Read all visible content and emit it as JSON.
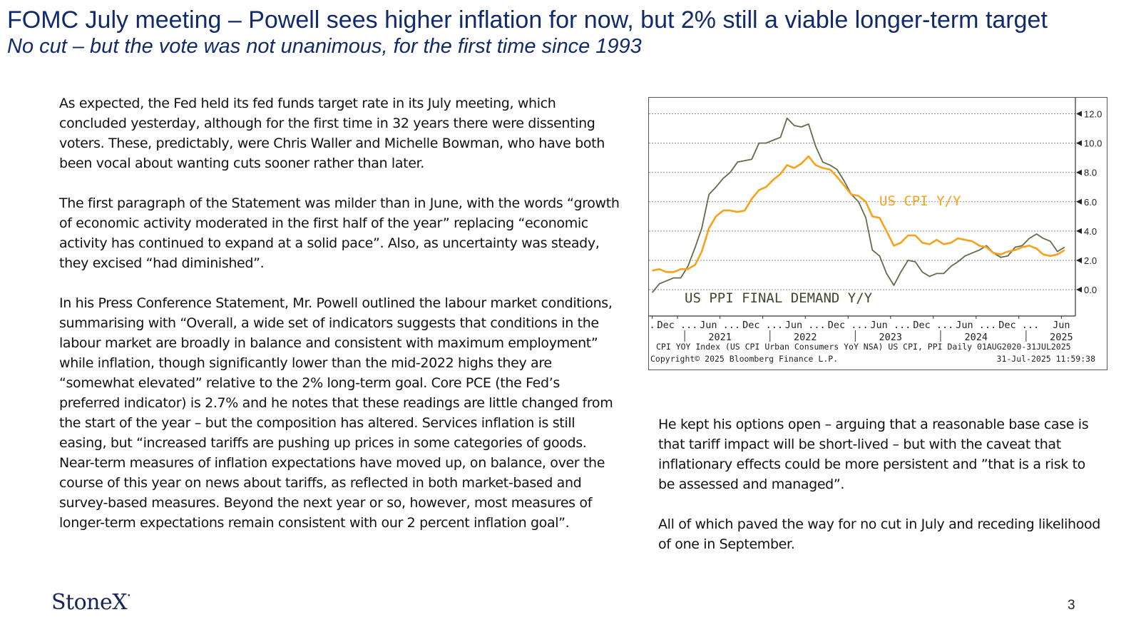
{
  "header": {
    "title": "FOMC July meeting – Powell sees higher inflation for now, but 2% still a viable longer-term target",
    "subtitle": "No cut – but the vote was not unanimous, for the first time since 1993"
  },
  "left_column": {
    "paragraphs": [
      "As expected, the Fed held its fed funds target rate in its July meeting, which concluded yesterday, although for the first time in 32 years there were dissenting voters.  These, predictably, were Chris Waller and Michelle Bowman, who have both been vocal about wanting cuts sooner rather than later.",
      "The first paragraph of the Statement was milder than in June, with the words “growth of economic activity moderated in the first half of the year” replacing “economic activity has continued to expand at a solid pace”.   Also, as uncertainty was steady, they excised “had diminished”.",
      "In his Press Conference Statement, Mr. Powell outlined the labour market conditions, summarising with “Overall, a wide set of indicators suggests that conditions in the labour market are broadly in balance and consistent with maximum employment” while inflation, though significantly lower than the mid-2022 highs  they are “somewhat elevated” relative to the  2% long-term goal. Core PCE (the Fed’s preferred indicator) is 2.7% and he notes that these readings are little changed from the start of the year – but the composition has altered.  Services inflation is still easing, but “increased tariffs are pushing up prices in some categories of goods.  Near-term measures of inflation expectations have moved up, on balance, over the course of this year on news about tariffs, as reflected in both market-based and survey-based measures. Beyond the next year or so, however, most measures of longer-term expectations remain consistent with our 2 percent inflation goal”."
    ]
  },
  "right_column": {
    "paragraphs": [
      "He kept his options open – arguing that a reasonable base case is that tariff impact will be short-lived – but with the caveat that inflationary effects could be more persistent and ”that is a  risk to be assessed and managed”.",
      "All of which paved the way for no cut in July and receding likelihood of one in September."
    ]
  },
  "chart_data": {
    "type": "line",
    "colors": {
      "cpi": "#f7a21b",
      "ppi": "#5f6e4a",
      "grid": "#8a8a8a"
    },
    "ylim": [
      -1.8,
      13.0
    ],
    "y_ticks": [
      "12.0",
      "10.0",
      "8.0",
      "6.0",
      "4.0",
      "2.0",
      "0.0"
    ],
    "y_tick_values": [
      12,
      10,
      8,
      6,
      4,
      2,
      0
    ],
    "x_range": [
      "2020-08-01",
      "2025-07-31"
    ],
    "x_tick_labels": [
      "...",
      "Dec ...",
      "Jun ...",
      "Dec ...",
      "Jun ...",
      "Dec ...",
      "Jun ...",
      "Dec ...",
      "Jun ...",
      "Dec ...",
      "Jun"
    ],
    "x_tick_dates": [
      "2020-08-15",
      "2020-12-01",
      "2021-06-01",
      "2021-12-01",
      "2022-06-01",
      "2022-12-01",
      "2023-06-01",
      "2023-12-01",
      "2024-06-01",
      "2024-12-01",
      "2025-06-01"
    ],
    "year_labels": [
      "2021",
      "2022",
      "2023",
      "2024",
      "2025"
    ],
    "year_label_dates": [
      "2021-06-01",
      "2022-06-01",
      "2023-06-01",
      "2024-06-01",
      "2025-06-01"
    ],
    "year_separator_dates": [
      "2021-01-01",
      "2022-01-01",
      "2023-01-01",
      "2024-01-01",
      "2025-01-01"
    ],
    "series": [
      {
        "name": "US CPI Y/Y",
        "key": "cpi",
        "x": [
          "2020-08",
          "2020-09",
          "2020-10",
          "2020-11",
          "2020-12",
          "2021-01",
          "2021-02",
          "2021-03",
          "2021-04",
          "2021-05",
          "2021-06",
          "2021-07",
          "2021-08",
          "2021-09",
          "2021-10",
          "2021-11",
          "2021-12",
          "2022-01",
          "2022-02",
          "2022-03",
          "2022-04",
          "2022-05",
          "2022-06",
          "2022-07",
          "2022-08",
          "2022-09",
          "2022-10",
          "2022-11",
          "2022-12",
          "2023-01",
          "2023-02",
          "2023-03",
          "2023-04",
          "2023-05",
          "2023-06",
          "2023-07",
          "2023-08",
          "2023-09",
          "2023-10",
          "2023-11",
          "2023-12",
          "2024-01",
          "2024-02",
          "2024-03",
          "2024-04",
          "2024-05",
          "2024-06",
          "2024-07",
          "2024-08",
          "2024-09",
          "2024-10",
          "2024-11",
          "2024-12",
          "2025-01",
          "2025-02",
          "2025-03",
          "2025-04",
          "2025-05",
          "2025-06"
        ],
        "values": [
          1.3,
          1.4,
          1.2,
          1.2,
          1.4,
          1.4,
          1.7,
          2.6,
          4.2,
          5.0,
          5.4,
          5.4,
          5.3,
          5.4,
          6.2,
          6.8,
          7.0,
          7.5,
          7.9,
          8.5,
          8.3,
          8.6,
          9.1,
          8.5,
          8.3,
          8.2,
          7.7,
          7.1,
          6.5,
          6.4,
          6.0,
          5.0,
          4.9,
          4.0,
          3.0,
          3.2,
          3.7,
          3.7,
          3.2,
          3.1,
          3.4,
          3.1,
          3.2,
          3.5,
          3.4,
          3.3,
          3.0,
          2.9,
          2.5,
          2.4,
          2.6,
          2.7,
          2.9,
          3.0,
          2.8,
          2.4,
          2.3,
          2.4,
          2.7
        ]
      },
      {
        "name": "US PPI FINAL DEMAND Y/Y",
        "key": "ppi",
        "x": [
          "2020-08",
          "2020-09",
          "2020-10",
          "2020-11",
          "2020-12",
          "2021-01",
          "2021-02",
          "2021-03",
          "2021-04",
          "2021-05",
          "2021-06",
          "2021-07",
          "2021-08",
          "2021-09",
          "2021-10",
          "2021-11",
          "2021-12",
          "2022-01",
          "2022-02",
          "2022-03",
          "2022-04",
          "2022-05",
          "2022-06",
          "2022-07",
          "2022-08",
          "2022-09",
          "2022-10",
          "2022-11",
          "2022-12",
          "2023-01",
          "2023-02",
          "2023-03",
          "2023-04",
          "2023-05",
          "2023-06",
          "2023-07",
          "2023-08",
          "2023-09",
          "2023-10",
          "2023-11",
          "2023-12",
          "2024-01",
          "2024-02",
          "2024-03",
          "2024-04",
          "2024-05",
          "2024-06",
          "2024-07",
          "2024-08",
          "2024-09",
          "2024-10",
          "2024-11",
          "2024-12",
          "2025-01",
          "2025-02",
          "2025-03",
          "2025-04",
          "2025-05",
          "2025-06"
        ],
        "values": [
          -0.2,
          0.4,
          0.6,
          0.8,
          0.8,
          1.6,
          2.9,
          4.2,
          6.5,
          7.0,
          7.6,
          8.0,
          8.7,
          8.8,
          8.9,
          10.0,
          10.0,
          10.2,
          10.4,
          11.7,
          11.2,
          11.1,
          11.3,
          9.8,
          8.7,
          8.5,
          8.2,
          7.4,
          6.5,
          6.0,
          4.9,
          2.7,
          2.3,
          1.1,
          0.3,
          1.2,
          2.0,
          1.9,
          1.2,
          0.9,
          1.1,
          1.1,
          1.6,
          1.9,
          2.3,
          2.5,
          2.7,
          3.0,
          2.5,
          2.2,
          2.3,
          2.9,
          3.0,
          3.5,
          3.8,
          3.5,
          3.3,
          2.6,
          2.9
        ]
      }
    ],
    "annotations": {
      "cpi_label": "US CPI Y/Y",
      "ppi_label": "US PPI FINAL DEMAND Y/Y"
    },
    "footer": {
      "line1": "CPI YOY Index (US CPI Urban Consumers YoY NSA) US CPI, PPI  Daily 01AUG2020-31JUL2025",
      "line2_left": "Copyright© 2025 Bloomberg Finance L.P.",
      "line2_right": "31-Jul-2025 11:59:38"
    },
    "grid": true
  },
  "footer": {
    "logo_text": "StoneX",
    "logo_mark": "•",
    "page_number": "3"
  }
}
